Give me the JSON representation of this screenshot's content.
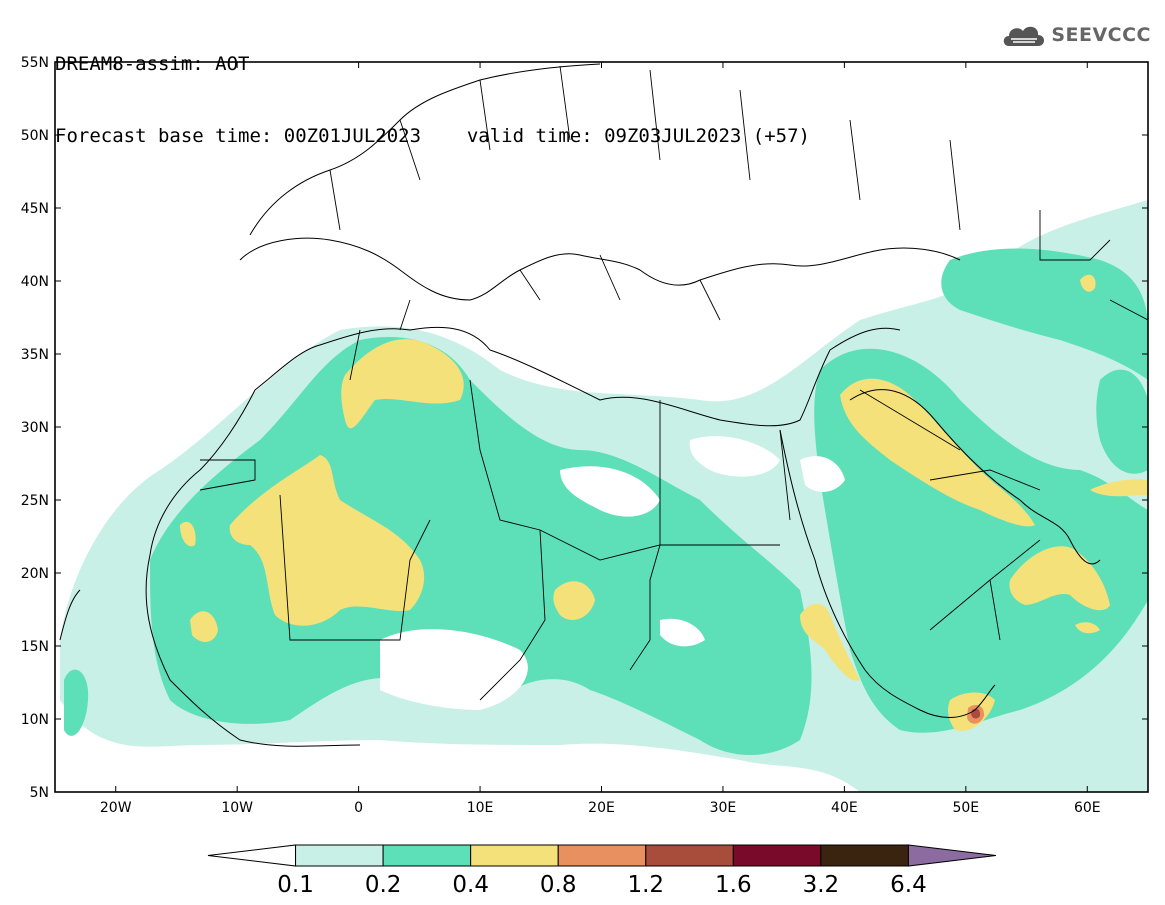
{
  "header": {
    "model_line": "DREAM8-assim: AOT",
    "base_time_label": "Forecast base time: 00Z01JUL2023",
    "valid_time_label": "valid time: 09Z03JUL2023 (+57)"
  },
  "logo": {
    "text": "SEEVCCC",
    "icon": "cloud-icon"
  },
  "axes": {
    "lat_labels": [
      "55N",
      "50N",
      "45N",
      "40N",
      "35N",
      "30N",
      "25N",
      "20N",
      "15N",
      "10N",
      "5N"
    ],
    "lon_labels": [
      "20W",
      "10W",
      "0",
      "10E",
      "20E",
      "30E",
      "40E",
      "50E",
      "60E"
    ],
    "lon_range": [
      -25,
      65
    ],
    "lat_range": [
      5,
      55
    ]
  },
  "colorbar": {
    "labels": [
      "0.1",
      "0.2",
      "0.4",
      "0.8",
      "1.2",
      "1.6",
      "3.2",
      "6.4"
    ],
    "colors": [
      "#ffffff",
      "#c8f0e6",
      "#5ddfb8",
      "#f5e17a",
      "#e89060",
      "#a84c3c",
      "#7a0a2a",
      "#3a2410",
      "#8c6ca0"
    ]
  },
  "field": {
    "variable": "AOT",
    "levels": [
      0.1,
      0.2,
      0.4,
      0.8,
      1.2,
      1.6,
      3.2,
      6.4
    ]
  }
}
